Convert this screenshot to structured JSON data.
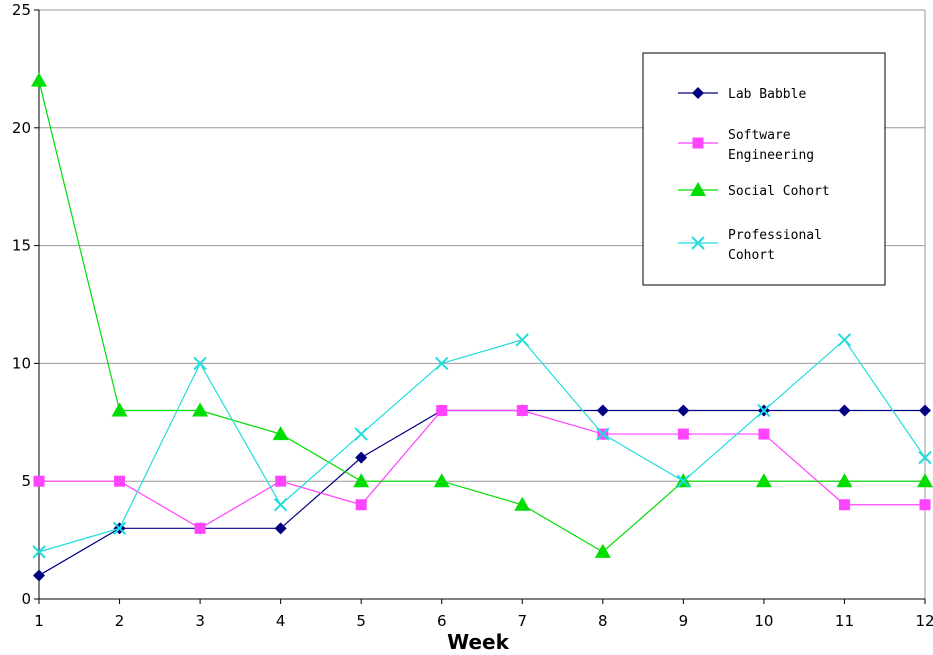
{
  "chart_data": {
    "type": "line",
    "title": "",
    "xlabel": "Week",
    "ylabel": "",
    "x": [
      1,
      2,
      3,
      4,
      5,
      6,
      7,
      8,
      9,
      10,
      11,
      12
    ],
    "xlim": [
      1,
      12
    ],
    "ylim": [
      0,
      25
    ],
    "yticks": [
      0,
      5,
      10,
      15,
      20,
      25
    ],
    "xticks": [
      1,
      2,
      3,
      4,
      5,
      6,
      7,
      8,
      9,
      10,
      11,
      12
    ],
    "grid": "horizontal",
    "legend_position": "top-right",
    "series": [
      {
        "name": "Lab Babble",
        "legend_lines": [
          "Lab Babble"
        ],
        "color": "#000080",
        "marker": "diamond",
        "values": [
          1,
          3,
          3,
          3,
          6,
          8,
          8,
          8,
          8,
          8,
          8,
          8
        ]
      },
      {
        "name": "Software Engineering",
        "legend_lines": [
          "Software",
          "Engineering"
        ],
        "color": "#ff44ff",
        "marker": "square",
        "values": [
          5,
          5,
          3,
          5,
          4,
          8,
          8,
          7,
          7,
          7,
          4,
          4
        ]
      },
      {
        "name": "Social Cohort",
        "legend_lines": [
          "Social Cohort"
        ],
        "color": "#00dd00",
        "marker": "triangle",
        "values": [
          22,
          8,
          8,
          7,
          5,
          5,
          4,
          2,
          5,
          5,
          5,
          5
        ]
      },
      {
        "name": "Professional Cohort",
        "legend_lines": [
          "Professional",
          "Cohort"
        ],
        "color": "#22dddd",
        "marker": "x",
        "values": [
          2,
          3,
          10,
          4,
          7,
          10,
          11,
          7,
          5,
          8,
          11,
          6
        ]
      }
    ]
  }
}
